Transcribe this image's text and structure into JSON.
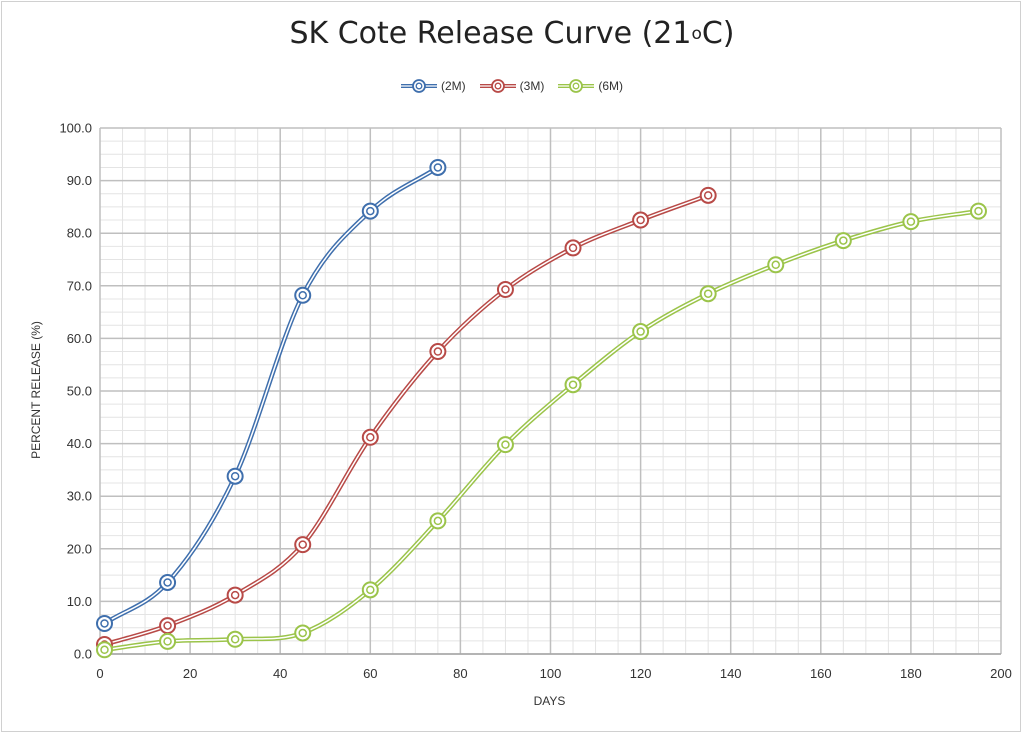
{
  "chart_data": {
    "type": "line",
    "title": "SK Cote Release Curve (21",
    "title_sup": "o",
    "title_tail": "C)",
    "xlabel": "DAYS",
    "ylabel": "PERCENT RELEASE (%)",
    "xlim": [
      0,
      200
    ],
    "ylim": [
      0,
      100
    ],
    "xticks": [
      0,
      20,
      40,
      60,
      80,
      100,
      120,
      140,
      160,
      180,
      200
    ],
    "yticks": [
      "0.0",
      "10.0",
      "20.0",
      "30.0",
      "40.0",
      "50.0",
      "60.0",
      "70.0",
      "80.0",
      "90.0",
      "100.0"
    ],
    "grid": true,
    "legend_position": "top-center",
    "series": [
      {
        "name": "(2M)",
        "color": "#3f6fad",
        "x": [
          1,
          15,
          30,
          45,
          60,
          75
        ],
        "y": [
          5.8,
          13.6,
          33.8,
          68.2,
          84.2,
          92.5
        ]
      },
      {
        "name": "(3M)",
        "color": "#b84a47",
        "x": [
          1,
          15,
          30,
          45,
          60,
          75,
          90,
          105,
          120,
          135
        ],
        "y": [
          1.8,
          5.4,
          11.2,
          20.8,
          41.2,
          57.5,
          69.3,
          77.2,
          82.5,
          87.2
        ]
      },
      {
        "name": "(6M)",
        "color": "#9bc44a",
        "x": [
          1,
          15,
          30,
          45,
          60,
          75,
          90,
          105,
          120,
          135,
          150,
          165,
          180,
          195
        ],
        "y": [
          0.8,
          2.4,
          2.8,
          4.0,
          12.2,
          25.3,
          39.8,
          51.2,
          61.3,
          68.5,
          74.0,
          78.6,
          82.2,
          84.2
        ]
      }
    ]
  }
}
